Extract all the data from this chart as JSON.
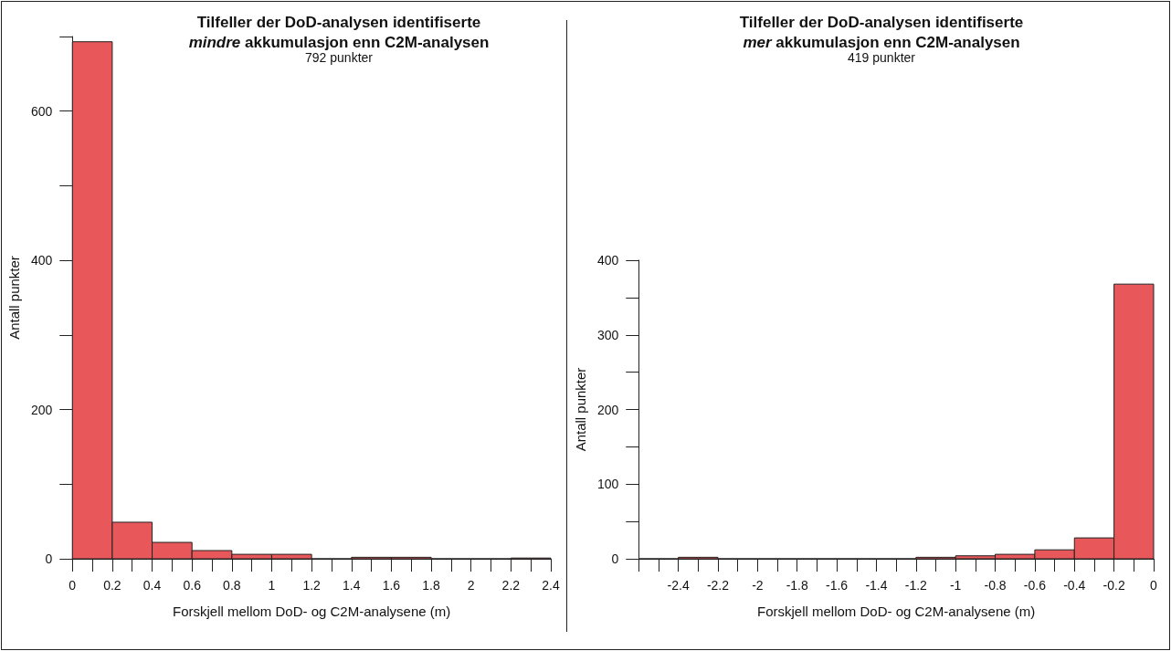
{
  "chart_data": [
    {
      "type": "histogram",
      "title": "Tilfeller der DoD-analysen identifiserte\nmindre akkumulasjon enn C2M-analysen",
      "subtitle": "792 punkter",
      "xlabel": "Forskjell mellom DoD- og C2M-analysene (m)",
      "ylabel": "Antall punkter",
      "color": "#e8585a",
      "bins": [
        0,
        0.2,
        0.4,
        0.6,
        0.8,
        1,
        1.2,
        1.4,
        1.6,
        1.8,
        2,
        2.2,
        2.4
      ],
      "values": [
        693,
        49,
        22,
        11,
        6,
        6,
        0,
        2,
        2,
        0,
        0,
        1
      ],
      "xlim": [
        0,
        2.4
      ],
      "xticks": [
        0,
        {
          "value": 0.1,
          "label": null
        },
        0.2,
        {
          "value": 0.3,
          "label": null
        },
        0.4,
        {
          "value": 0.5,
          "label": null
        },
        0.6,
        {
          "value": 0.7,
          "label": null
        },
        0.8,
        {
          "value": 0.9,
          "label": null
        },
        1,
        {
          "value": 1.1,
          "label": null
        },
        1.2,
        {
          "value": 1.3,
          "label": null
        },
        1.4,
        {
          "value": 1.5,
          "label": null
        },
        1.6,
        {
          "value": 1.7,
          "label": null
        },
        1.8,
        {
          "value": 1.9,
          "label": null
        },
        2,
        {
          "value": 2.1,
          "label": null
        },
        2.2,
        {
          "value": 2.3,
          "label": null
        },
        2.4
      ],
      "ylim": [
        0,
        700
      ],
      "yticks": [
        0,
        {
          "value": 100,
          "label": null
        },
        200,
        {
          "value": 300,
          "label": null
        },
        400,
        {
          "value": 500,
          "label": null
        },
        600,
        {
          "value": 700,
          "label": null
        }
      ],
      "grid": false
    },
    {
      "type": "histogram",
      "title": "Tilfeller der DoD-analysen identifiserte\nmer akkumulasjon enn C2M-analysen",
      "subtitle": "419 punkter",
      "xlabel": "Forskjell mellom DoD- og C2M-analysene (m)",
      "ylabel": "Antall punkter",
      "color": "#e8585a",
      "bins": [
        -2.6,
        -2.4,
        -2.2,
        -2,
        -1.8,
        -1.6,
        -1.4,
        -1.2,
        -1,
        -0.8,
        -0.6,
        -0.4,
        -0.2,
        0
      ],
      "values": [
        0,
        2,
        0,
        0,
        0,
        0,
        0,
        2,
        4,
        6,
        12,
        28,
        368
      ],
      "xlim": [
        -2.6,
        0
      ],
      "xticks": [
        {
          "value": -2.6,
          "label": null
        },
        {
          "value": -2.5,
          "label": null
        },
        -2.4,
        {
          "value": -2.3,
          "label": null
        },
        -2.2,
        {
          "value": -2.1,
          "label": null
        },
        -2,
        {
          "value": -1.9,
          "label": null
        },
        -1.8,
        {
          "value": -1.7,
          "label": null
        },
        -1.6,
        {
          "value": -1.5,
          "label": null
        },
        -1.4,
        {
          "value": -1.3,
          "label": null
        },
        -1.2,
        {
          "value": -1.1,
          "label": null
        },
        -1,
        {
          "value": -0.9,
          "label": null
        },
        -0.8,
        {
          "value": -0.7,
          "label": null
        },
        -0.6,
        {
          "value": -0.5,
          "label": null
        },
        -0.4,
        {
          "value": -0.3,
          "label": null
        },
        -0.2,
        {
          "value": -0.1,
          "label": null
        },
        0
      ],
      "ylim": [
        0,
        400
      ],
      "yticks": [
        0,
        {
          "value": 50,
          "label": null
        },
        100,
        {
          "value": 150,
          "label": null
        },
        200,
        {
          "value": 250,
          "label": null
        },
        300,
        {
          "value": 350,
          "label": null
        },
        400
      ],
      "grid": false
    }
  ]
}
